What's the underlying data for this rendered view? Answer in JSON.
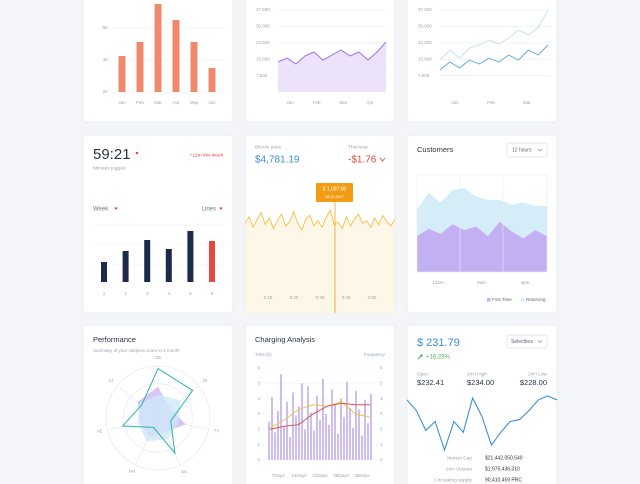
{
  "sales": {
    "categories": [
      "Jan",
      "Feb",
      "Mar",
      "Apr",
      "May",
      "Jun"
    ],
    "values": [
      4250,
      5125,
      7500,
      6500,
      5125,
      3500
    ],
    "ylim": [
      2000,
      7750
    ],
    "yticks": [
      {
        "value": 2000,
        "label": "2K"
      },
      {
        "value": 4000,
        "label": "4K"
      },
      {
        "value": 6000,
        "label": "6K"
      }
    ],
    "color": "#f0896b"
  },
  "volume": {
    "xlabels": [
      "Jan",
      "Feb",
      "Mar",
      "Apr"
    ],
    "values": [
      13700,
      15500,
      12800,
      16500,
      18300,
      14600,
      16900,
      19200,
      16500,
      18300,
      14600,
      18300,
      22900
    ],
    "ylim": [
      0,
      37500
    ],
    "yticks": [
      {
        "value": 7500,
        "label": "7,500"
      },
      {
        "value": 15000,
        "label": "15,000"
      },
      {
        "value": 22500,
        "label": "22,500"
      },
      {
        "value": 30000,
        "label": "30,000"
      },
      {
        "value": 37500,
        "label": "37,500"
      }
    ],
    "color": "#9b72e8",
    "fill": "#ece2fc"
  },
  "traffic": {
    "xlabels": [
      "Jan",
      "Feb",
      "Mar"
    ],
    "ylim": [
      0,
      37500
    ],
    "yticks": [
      {
        "value": 7500,
        "label": "7,500"
      },
      {
        "value": 15000,
        "label": "15,000"
      },
      {
        "value": 22500,
        "label": "22,500"
      },
      {
        "value": 30000,
        "label": "30,000"
      },
      {
        "value": 37500,
        "label": "37,500"
      }
    ],
    "series": [
      {
        "color": "#c6dcf0",
        "values": [
          14600,
          19200,
          15500,
          20100,
          21500,
          23800,
          22000,
          24700,
          28400,
          26100,
          29300,
          37500
        ]
      },
      {
        "color": "#5aa4e0",
        "values": [
          10100,
          13700,
          11000,
          14600,
          12800,
          15500,
          13700,
          16900,
          14600,
          19200,
          16900,
          21500
        ]
      }
    ]
  },
  "jogging": {
    "time": "59:21",
    "change": "+12m this week",
    "caption": "Minutes jogged",
    "period": "Week",
    "mode": "Lines",
    "categories": [
      "1",
      "2",
      "3",
      "4",
      "5",
      "6"
    ],
    "values": [
      20,
      31,
      42,
      33,
      51,
      41
    ],
    "colors": [
      "#1c2b4c",
      "#1c2b4c",
      "#1c2b4c",
      "#1c2b4c",
      "#1c2b4c",
      "#e5483f"
    ]
  },
  "bitcoin": {
    "price_label": "Bitcoin price",
    "price": "$4,781.19",
    "hour_label": "This hour",
    "hour_change": "-$1.76",
    "tooltip_value": "$ 1,097.00",
    "tooltip_date": "08.22.2017",
    "xlabels": [
      "0:15",
      "0:20",
      "0:30",
      "0:45",
      "0:50"
    ],
    "values": [
      1099,
      1104,
      1096,
      1102,
      1107,
      1098,
      1103,
      1095,
      1101,
      1106,
      1097,
      1100,
      1108,
      1099,
      1094,
      1102,
      1105,
      1097,
      1101,
      1096,
      1103,
      1109,
      1098,
      1100,
      1095,
      1104,
      1097,
      1102,
      1106,
      1099,
      1101,
      1096,
      1103,
      1098,
      1105,
      1100,
      1097,
      1102
    ],
    "color": "#f4c044"
  },
  "customers": {
    "title": "Customers",
    "range": "12 hours",
    "xlabels": [
      "12am",
      "8am",
      "4pm"
    ],
    "series": [
      {
        "name": "First Time",
        "color": "#c3b0f2",
        "values": [
          30,
          36,
          32,
          40,
          35,
          38,
          30,
          42,
          34,
          28,
          35,
          30
        ]
      },
      {
        "name": "Returning",
        "color": "#d5ecf9",
        "values": [
          22,
          30,
          26,
          28,
          35,
          25,
          30,
          18,
          22,
          30,
          20,
          25
        ]
      }
    ]
  },
  "performance": {
    "title": "Performance",
    "subtitle": "Summary of your subjects score in 5 month",
    "axes": [
      "3D",
      "JS",
      "TY",
      "SS",
      "PH",
      "AE",
      "LT"
    ],
    "series": [
      {
        "color": "#cbb8f4",
        "values": [
          60,
          30,
          55,
          30,
          40,
          35,
          50
        ]
      },
      {
        "color": "#cfe7f7",
        "values": [
          45,
          55,
          40,
          45,
          50,
          40,
          45
        ]
      },
      {
        "color": "#2fb3ae",
        "values": [
          95,
          85,
          25,
          75,
          20,
          70,
          40
        ]
      }
    ]
  },
  "charging": {
    "title": "Charging Analysis",
    "ylabel": "Time (h)",
    "y2label": "Frequency",
    "ylim": [
      0,
      6
    ],
    "yticks": [
      0,
      1,
      2,
      3,
      4,
      5,
      6
    ],
    "y2lim": [
      0,
      6
    ],
    "y2ticks": [
      0,
      1,
      2,
      3,
      4,
      5,
      6
    ],
    "xlabels": [
      "7Days",
      "14Days",
      "21Days",
      "28Days",
      "35Days"
    ],
    "bars": {
      "color": "#b8a2ea",
      "values": [
        2.5,
        4.1,
        1.8,
        3.2,
        5.6,
        2.2,
        3.8,
        1.5,
        4.4,
        2.9,
        3.5,
        5.0,
        2.0,
        4.8,
        3.1,
        1.9,
        4.2,
        2.6,
        5.3,
        3.0,
        2.3,
        4.6,
        3.7,
        1.7,
        4.0,
        2.8,
        5.1,
        3.4,
        2.1,
        4.5,
        3.3,
        1.6,
        3.9,
        2.4,
        4.3
      ]
    },
    "series": [
      {
        "color": "#f3c04a",
        "axis": "y2",
        "values": [
          2.1,
          2.6,
          3.3,
          3.6,
          3.5,
          3.8,
          3.0,
          2.8
        ]
      },
      {
        "color": "#d9534f",
        "axis": "y2",
        "values": [
          2.0,
          2.2,
          2.3,
          3.0,
          3.5,
          3.7,
          3.6,
          3.6
        ]
      }
    ]
  },
  "coin": {
    "price": "$ 231.79",
    "select": "Selectbox",
    "change": "+16.23%",
    "stats": [
      {
        "label": "Open",
        "value": "$232.41"
      },
      {
        "label": "24H High",
        "value": "$234.00"
      },
      {
        "label": "24H Low",
        "value": "$228.00"
      }
    ],
    "values": [
      233.5,
      232.4,
      230.4,
      231.3,
      228.4,
      231.3,
      230.2,
      233.7,
      231.8,
      228.9,
      230.2,
      231.3,
      231.5,
      232.4,
      233.5,
      233.9,
      233.5
    ],
    "color": "#3d8fd6",
    "details": [
      {
        "label": "Market Cap",
        "value": "$21,442,050,540"
      },
      {
        "label": "24H Volume",
        "value": "$1,975,436,310"
      },
      {
        "label": "Circulating supply",
        "value": "90,410,459 PRC"
      }
    ]
  }
}
